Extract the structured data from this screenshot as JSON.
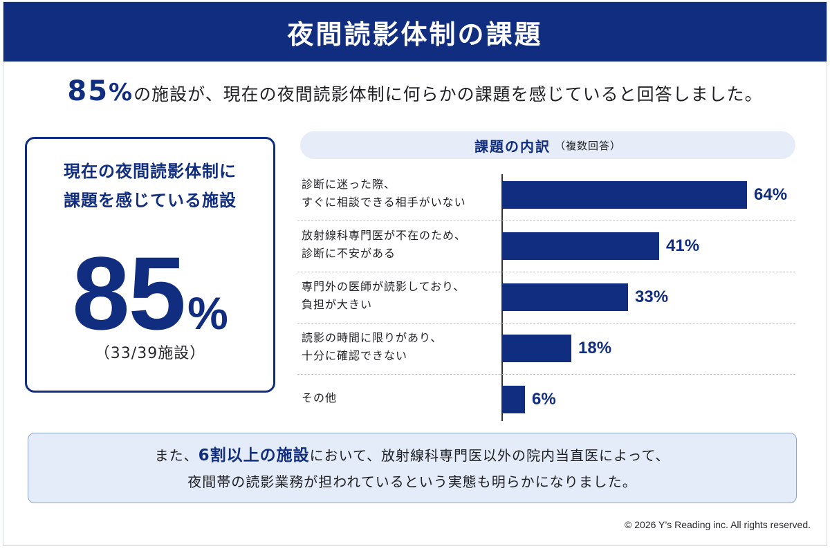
{
  "header": {
    "title": "夜間読影体制の課題"
  },
  "lead": {
    "big_number": "85",
    "big_pct": "%",
    "text": "の施設が、現在の夜間読影体制に何らかの課題を感じていると回答しました。"
  },
  "summary_box": {
    "title_line1": "現在の夜間読影体制に",
    "title_line2": "課題を感じている施設",
    "number": "85",
    "pct": "%",
    "sub": "（33/39施設）"
  },
  "breakdown": {
    "title": "課題の内訳",
    "subtitle": "（複数回答）"
  },
  "chart_data": {
    "type": "bar",
    "orientation": "horizontal",
    "categories": [
      [
        "診断に迷った際、",
        "すぐに相談できる相手がいない"
      ],
      [
        "放射線科専門医が不在のため、",
        "診断に不安がある"
      ],
      [
        "専門外の医師が読影しており、",
        "負担が大きい"
      ],
      [
        "読影の時間に限りがあり、",
        "十分に確認できない"
      ],
      [
        "その他"
      ]
    ],
    "values": [
      64,
      41,
      33,
      18,
      6
    ],
    "value_labels": [
      "64%",
      "41%",
      "33%",
      "18%",
      "6%"
    ],
    "xlim": [
      0,
      100
    ],
    "grid": false,
    "bar_color": "#112d7f"
  },
  "note": {
    "pre": "また、",
    "highlight": "6割以上の施設",
    "mid": "において、放射線科専門医以外の院内当直医によって、",
    "line2": "夜間帯の読影業務が担われているという実態も明らかになりました。"
  },
  "footer": {
    "copyright": "© 2026 Y’s Reading inc. All rights reserved."
  },
  "colors": {
    "brand": "#112d7f",
    "light_bg": "#e4ecf9"
  }
}
